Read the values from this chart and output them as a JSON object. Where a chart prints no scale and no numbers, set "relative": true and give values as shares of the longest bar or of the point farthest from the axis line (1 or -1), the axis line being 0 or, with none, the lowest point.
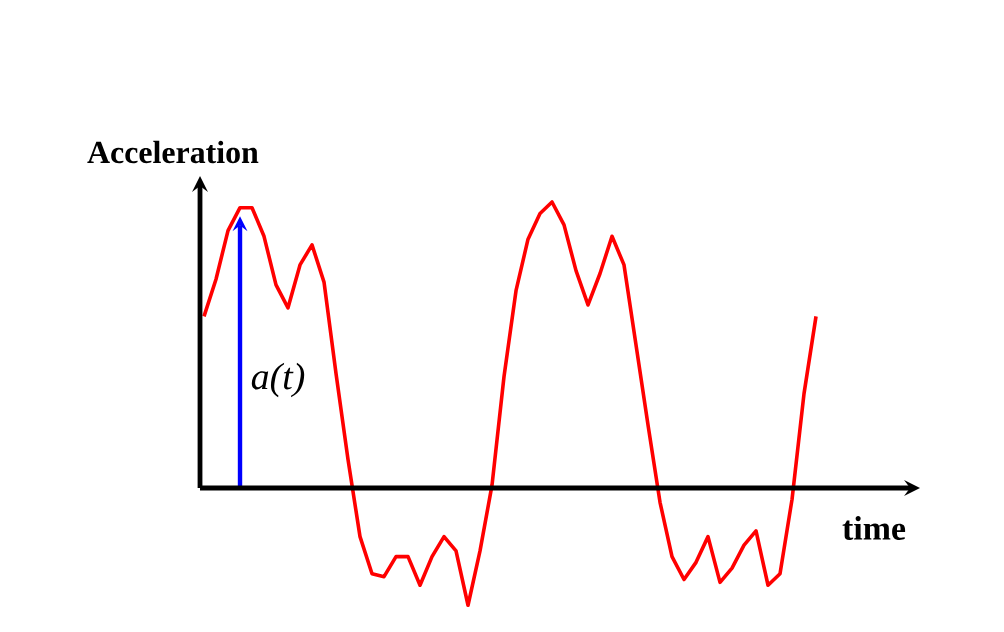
{
  "chart_data": {
    "type": "line",
    "relative": true,
    "xlabel": "time",
    "ylabel": "Acceleration",
    "color": "#ff0000",
    "annotations": [
      "a(t)"
    ],
    "categories": [
      null,
      null,
      null,
      null,
      null,
      null,
      null,
      null,
      null,
      null,
      null,
      null,
      null,
      null,
      null,
      null,
      null,
      null,
      null,
      null,
      null,
      null,
      null,
      null,
      null,
      null,
      null,
      null,
      null,
      null,
      null,
      null,
      null,
      null,
      null,
      null,
      null,
      null,
      null,
      null,
      null,
      null,
      null,
      null,
      null,
      null,
      null,
      null,
      null,
      null,
      null,
      null
    ],
    "values": [
      0.6,
      0.73,
      0.9,
      0.98,
      0.98,
      0.88,
      0.71,
      0.63,
      0.78,
      0.85,
      0.72,
      0.4,
      0.1,
      -0.17,
      -0.3,
      -0.31,
      -0.24,
      -0.24,
      -0.34,
      -0.24,
      -0.17,
      -0.22,
      -0.41,
      -0.22,
      0.01,
      0.39,
      0.69,
      0.87,
      0.96,
      1,
      0.92,
      0.76,
      0.64,
      0.75,
      0.88,
      0.78,
      0.5,
      0.22,
      -0.05,
      -0.24,
      -0.32,
      -0.26,
      -0.17,
      -0.33,
      -0.28,
      -0.2,
      -0.15,
      -0.34,
      -0.3,
      -0.04,
      0.33,
      0.6
    ]
  }
}
